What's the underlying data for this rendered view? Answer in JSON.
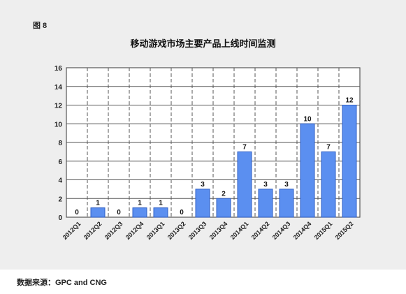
{
  "figure_label": "图 8",
  "source_note": "数据来源：GPC and CNG",
  "colors": {
    "bar_fill": "#5b8ff0",
    "bar_stroke": "#2f5fc4",
    "grid": "#555555",
    "panel": "#eeeeee"
  },
  "chart_data": {
    "type": "bar",
    "title": "移动游戏市场主要产品上线时间监测",
    "xlabel": "",
    "ylabel": "",
    "categories": [
      "2012Q1",
      "2012Q2",
      "2012Q3",
      "2012Q4",
      "2013Q1",
      "2013Q2",
      "2013Q3",
      "2013Q4",
      "2014Q1",
      "2014Q2",
      "2014Q3",
      "2014Q4",
      "2015Q1",
      "2015Q2"
    ],
    "values": [
      0,
      1,
      0,
      1,
      1,
      0,
      3,
      2,
      7,
      3,
      3,
      10,
      7,
      12
    ],
    "ylim": [
      0,
      16
    ],
    "yticks": [
      0,
      2,
      4,
      6,
      8,
      10,
      12,
      14,
      16
    ],
    "grid": true,
    "data_labels": true
  }
}
